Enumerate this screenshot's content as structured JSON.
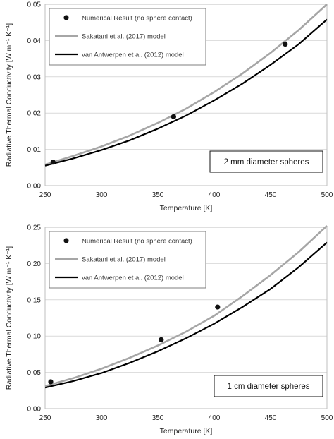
{
  "chart_data": [
    {
      "type": "line",
      "annotation": "2 mm diameter spheres",
      "xlabel": "Temperature  [K]",
      "ylabel": "Radiative Thermal Conductivity  [W m⁻¹ K⁻¹]",
      "xlim": [
        250,
        500
      ],
      "ylim": [
        0,
        0.05
      ],
      "xticks": [
        "250",
        "300",
        "350",
        "400",
        "450",
        "500"
      ],
      "yticks": [
        "0.00",
        "0.01",
        "0.02",
        "0.03",
        "0.04",
        "0.05"
      ],
      "grid": "horizontal",
      "legend": "top-left",
      "series": [
        {
          "name": "Numerical Result (no sphere contact)",
          "style": "markers",
          "color": "#111111",
          "x": [
            257,
            364,
            463
          ],
          "y": [
            0.0065,
            0.019,
            0.039
          ]
        },
        {
          "name": "Sakatani et al. (2017) model",
          "style": "line",
          "color": "#a6a6a6",
          "x": [
            250,
            275,
            300,
            325,
            350,
            375,
            400,
            425,
            450,
            475,
            500
          ],
          "y": [
            0.0058,
            0.0082,
            0.0108,
            0.0138,
            0.0173,
            0.0212,
            0.0258,
            0.0309,
            0.0366,
            0.0429,
            0.05
          ]
        },
        {
          "name": "van Antwerpen et al. (2012) model",
          "style": "line",
          "color": "#000000",
          "x": [
            250,
            275,
            300,
            325,
            350,
            375,
            400,
            425,
            450,
            475,
            500
          ],
          "y": [
            0.0055,
            0.0075,
            0.0098,
            0.0125,
            0.0157,
            0.0193,
            0.0235,
            0.0281,
            0.0333,
            0.039,
            0.0458
          ]
        }
      ]
    },
    {
      "type": "line",
      "annotation": "1 cm diameter spheres",
      "xlabel": "Temperature  [K]",
      "ylabel": "Radiative Thermal Conductivity  [W m⁻¹ K⁻¹]",
      "xlim": [
        250,
        500
      ],
      "ylim": [
        0,
        0.25
      ],
      "xticks": [
        "250",
        "300",
        "350",
        "400",
        "450",
        "500"
      ],
      "yticks": [
        "0.00",
        "0.05",
        "0.10",
        "0.15",
        "0.20",
        "0.25"
      ],
      "grid": "horizontal",
      "legend": "top-left",
      "series": [
        {
          "name": "Numerical Result (no sphere contact)",
          "style": "markers",
          "color": "#111111",
          "x": [
            255,
            353,
            403
          ],
          "y": [
            0.037,
            0.095,
            0.14
          ]
        },
        {
          "name": "Sakatani et al. (2017) model",
          "style": "line",
          "color": "#a6a6a6",
          "x": [
            250,
            275,
            300,
            325,
            350,
            375,
            400,
            425,
            450,
            475,
            500
          ],
          "y": [
            0.031,
            0.042,
            0.055,
            0.07,
            0.087,
            0.106,
            0.128,
            0.155,
            0.184,
            0.216,
            0.252
          ]
        },
        {
          "name": "van Antwerpen et al. (2012) model",
          "style": "line",
          "color": "#000000",
          "x": [
            250,
            275,
            300,
            325,
            350,
            375,
            400,
            425,
            450,
            475,
            500
          ],
          "y": [
            0.029,
            0.038,
            0.049,
            0.063,
            0.079,
            0.097,
            0.117,
            0.14,
            0.165,
            0.195,
            0.229
          ]
        }
      ]
    }
  ]
}
